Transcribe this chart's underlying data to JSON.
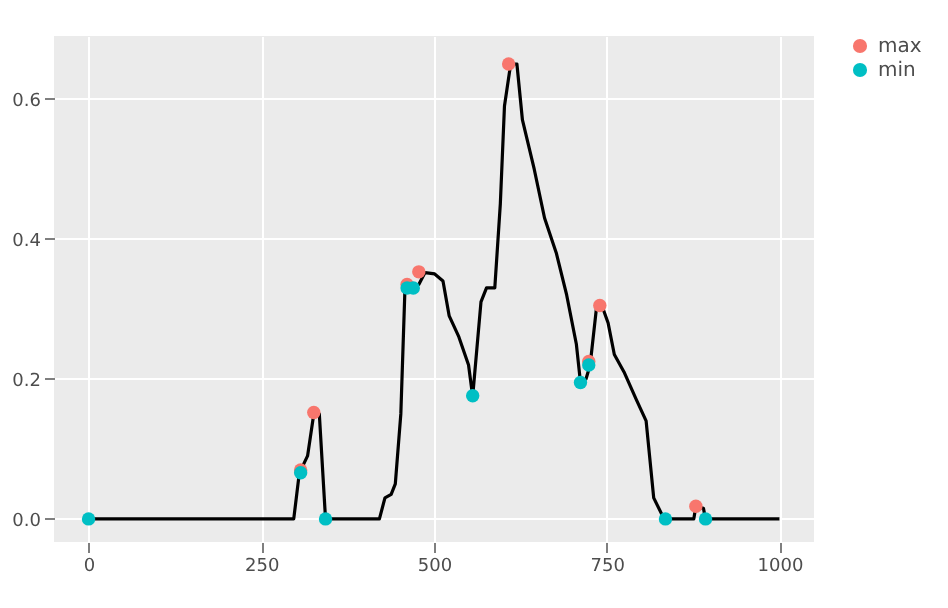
{
  "chart_data": {
    "type": "line",
    "xlim": [
      -50,
      1050
    ],
    "ylim": [
      -0.033,
      0.69
    ],
    "xticks": [
      0,
      250,
      500,
      750,
      1000
    ],
    "yticks": [
      {
        "value": 0,
        "label": "0.0"
      },
      0.2,
      0.4,
      0.6
    ],
    "grid": true,
    "legend": "right",
    "series": [
      {
        "type": "line",
        "color": "#000000",
        "marker": "none",
        "line_style": "solid",
        "x": [
          0,
          297,
          305,
          317,
          326,
          334,
          343,
          421,
          429,
          438,
          444,
          452,
          458,
          478,
          487,
          501,
          513,
          522,
          536,
          550,
          556,
          568,
          576,
          588,
          596,
          602,
          611,
          620,
          628,
          645,
          660,
          677,
          692,
          706,
          712,
          720,
          726,
          735,
          743,
          752,
          761,
          775,
          793,
          807,
          818,
          833,
          876,
          879,
          890,
          893,
          1000
        ],
        "values": [
          0,
          0,
          0.065,
          0.09,
          0.15,
          0.15,
          0,
          0,
          0.03,
          0.035,
          0.05,
          0.15,
          0.33,
          0.335,
          0.352,
          0.35,
          0.34,
          0.29,
          0.26,
          0.22,
          0.175,
          0.31,
          0.33,
          0.33,
          0.45,
          0.59,
          0.65,
          0.65,
          0.57,
          0.5,
          0.43,
          0.38,
          0.32,
          0.25,
          0.195,
          0.2,
          0.22,
          0.3,
          0.305,
          0.28,
          0.235,
          0.21,
          0.17,
          0.14,
          0.03,
          0,
          0,
          0.018,
          0.015,
          0,
          0
        ]
      },
      {
        "type": "scatter",
        "name": "max",
        "color": "#f8766d",
        "marker": "circle",
        "x": [
          307,
          326,
          461,
          478,
          608,
          724,
          740,
          879
        ],
        "values": [
          0.07,
          0.152,
          0.335,
          0.353,
          0.65,
          0.225,
          0.305,
          0.018
        ]
      },
      {
        "type": "scatter",
        "name": "min",
        "color": "#00bfc4",
        "marker": "circle",
        "x": [
          0,
          307,
          343,
          461,
          470,
          556,
          712,
          724,
          835,
          893
        ],
        "values": [
          0,
          0.066,
          0,
          0.33,
          0.33,
          0.176,
          0.195,
          0.22,
          0,
          0
        ]
      }
    ]
  }
}
